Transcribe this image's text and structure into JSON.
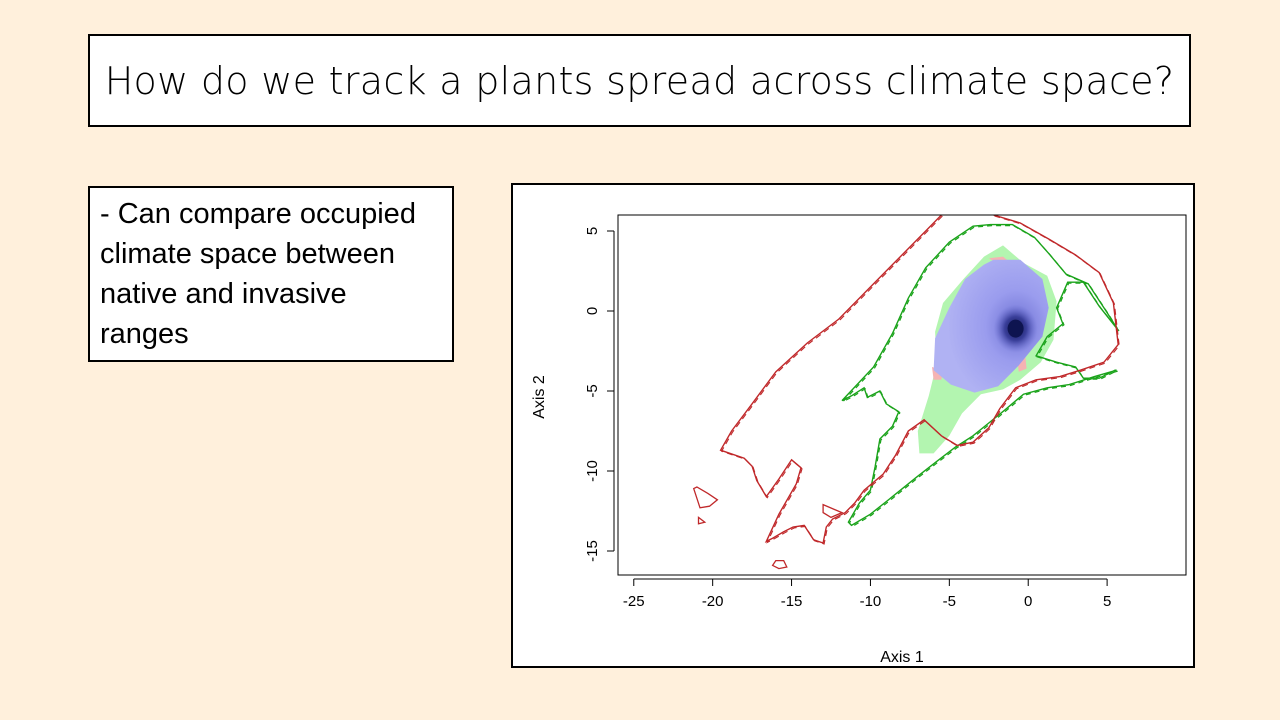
{
  "slide": {
    "title": "How do we track a plants spread across climate space?",
    "bullet": "- Can compare occupied climate space between native and invasive ranges"
  },
  "chart_data": {
    "type": "scatter",
    "xlabel": "Axis 1",
    "ylabel": "Axis 2",
    "xlim": [
      -26,
      10
    ],
    "ylim": [
      -16.5,
      6
    ],
    "x_ticks": [
      -25,
      -20,
      -15,
      -10,
      -5,
      0,
      5
    ],
    "y_ticks": [
      -15,
      -10,
      -5,
      0,
      5
    ],
    "x_tick_labels": [
      "-25",
      "-20",
      "-15",
      "-10",
      "-5",
      "0",
      "5"
    ],
    "y_tick_labels": [
      "-15",
      "-10",
      "-5",
      "0",
      "5"
    ],
    "colors": {
      "red_contour": "#c0282a",
      "green_contour": "#1aa31a",
      "blue_density": "#a7a8f0",
      "green_fill": "#b3f5b0",
      "pink_fill": "#f5b3b3",
      "density_peak": "#0e1450"
    },
    "red_contour": [
      [
        -5.5,
        6
      ],
      [
        -6.5,
        5
      ],
      [
        -8,
        3.5
      ],
      [
        -10,
        1.5
      ],
      [
        -12,
        -0.5
      ],
      [
        -14,
        -2
      ],
      [
        -16,
        -3.8
      ],
      [
        -17.5,
        -5.8
      ],
      [
        -18.8,
        -7.5
      ],
      [
        -19.5,
        -8.7
      ],
      [
        -18,
        -9.2
      ],
      [
        -17.5,
        -9.7
      ],
      [
        -17.2,
        -10.6
      ],
      [
        -16.6,
        -11.6
      ],
      [
        -15.8,
        -10.5
      ],
      [
        -15,
        -9.3
      ],
      [
        -14.4,
        -9.8
      ],
      [
        -14.7,
        -10.8
      ],
      [
        -15.8,
        -12.7
      ],
      [
        -16.6,
        -14.4
      ],
      [
        -16.2,
        -14.2
      ],
      [
        -15.5,
        -13.8
      ],
      [
        -14.9,
        -13.5
      ],
      [
        -14.2,
        -13.4
      ],
      [
        -13.6,
        -14.3
      ],
      [
        -13.0,
        -14.5
      ],
      [
        -12.8,
        -13.5
      ],
      [
        -12.4,
        -13.0
      ],
      [
        -11.6,
        -12.6
      ],
      [
        -11.0,
        -12.0
      ],
      [
        -10.4,
        -11.2
      ],
      [
        -9.2,
        -10.2
      ],
      [
        -8.4,
        -9.0
      ],
      [
        -7.6,
        -7.5
      ],
      [
        -6.6,
        -6.8
      ],
      [
        -5.5,
        -7.8
      ],
      [
        -4.5,
        -8.4
      ],
      [
        -3.5,
        -8.2
      ],
      [
        -2.5,
        -7.3
      ],
      [
        -1.8,
        -6.1
      ],
      [
        -0.8,
        -4.8
      ],
      [
        0.5,
        -4.3
      ],
      [
        2.0,
        -4.1
      ],
      [
        3.3,
        -3.7
      ],
      [
        4.8,
        -3.2
      ],
      [
        5.7,
        -2.1
      ],
      [
        5.4,
        0.5
      ],
      [
        4.5,
        2.4
      ],
      [
        3,
        3.5
      ],
      [
        1.3,
        4.5
      ],
      [
        -0.5,
        5.5
      ],
      [
        -2.2,
        6
      ]
    ],
    "red_contour_small": [
      [
        [
          -21.2,
          -11.1
        ],
        [
          -20.8,
          -12.3
        ],
        [
          -20.2,
          -12.2
        ],
        [
          -19.7,
          -11.8
        ],
        [
          -20.3,
          -11.4
        ],
        [
          -21.0,
          -11.0
        ],
        [
          -21.2,
          -11.1
        ]
      ],
      [
        [
          -20.9,
          -12.9
        ],
        [
          -20.5,
          -13.2
        ],
        [
          -20.9,
          -13.3
        ],
        [
          -20.9,
          -12.9
        ]
      ],
      [
        [
          -16.0,
          -15.6
        ],
        [
          -15.5,
          -15.6
        ],
        [
          -15.3,
          -16.0
        ],
        [
          -15.8,
          -16.1
        ],
        [
          -16.2,
          -15.9
        ],
        [
          -16.0,
          -15.6
        ]
      ],
      [
        [
          -13.0,
          -12.1
        ],
        [
          -12.3,
          -12.4
        ],
        [
          -11.8,
          -12.6
        ],
        [
          -12.5,
          -12.9
        ],
        [
          -13.0,
          -12.6
        ],
        [
          -13.0,
          -12.1
        ]
      ]
    ],
    "green_contour": [
      [
        -3.5,
        5.3
      ],
      [
        -5,
        4.3
      ],
      [
        -6.5,
        2.7
      ],
      [
        -7.6,
        0.8
      ],
      [
        -8.6,
        -1.4
      ],
      [
        -9.8,
        -3.5
      ],
      [
        -11.8,
        -5.6
      ],
      [
        -11.2,
        -5.3
      ],
      [
        -10.4,
        -4.8
      ],
      [
        -10.2,
        -5.4
      ],
      [
        -9.4,
        -5.0
      ],
      [
        -9.0,
        -5.8
      ],
      [
        -8.2,
        -6.3
      ],
      [
        -8.6,
        -7.2
      ],
      [
        -9.4,
        -8.0
      ],
      [
        -9.7,
        -9.7
      ],
      [
        -10.0,
        -11.2
      ],
      [
        -10.7,
        -12.0
      ],
      [
        -11.4,
        -13.2
      ],
      [
        -11.2,
        -13.4
      ],
      [
        -10.0,
        -12.7
      ],
      [
        -8.6,
        -11.6
      ],
      [
        -7.1,
        -10.4
      ],
      [
        -5.8,
        -9.4
      ],
      [
        -4.6,
        -8.5
      ],
      [
        -3.5,
        -7.8
      ],
      [
        -2.5,
        -7.0
      ],
      [
        -1.5,
        -6.2
      ],
      [
        -0.3,
        -5.2
      ],
      [
        1.2,
        -4.8
      ],
      [
        2.6,
        -4.6
      ],
      [
        4.2,
        -4.1
      ],
      [
        5.6,
        -3.7
      ],
      [
        5.5,
        -3.7
      ],
      [
        4.5,
        -4.2
      ],
      [
        3.5,
        -4.2
      ],
      [
        3.0,
        -3.5
      ],
      [
        1.8,
        -3.2
      ],
      [
        0.5,
        -2.8
      ],
      [
        1.2,
        -1.6
      ],
      [
        2.2,
        -0.8
      ],
      [
        1.8,
        0.2
      ],
      [
        2.5,
        1.8
      ],
      [
        3.5,
        1.8
      ],
      [
        4.5,
        0.3
      ],
      [
        5.7,
        -1.2
      ],
      [
        5.0,
        -0.1
      ],
      [
        3.8,
        1.7
      ],
      [
        2.4,
        2.3
      ],
      [
        1.3,
        3.6
      ],
      [
        0.4,
        4.6
      ],
      [
        -1.0,
        5.4
      ],
      [
        -2.4,
        5.4
      ],
      [
        -3.5,
        5.3
      ]
    ],
    "green_fill": [
      [
        -1.6,
        4.1
      ],
      [
        -0.3,
        3.0
      ],
      [
        1.2,
        2.2
      ],
      [
        1.8,
        0.6
      ],
      [
        1.6,
        -1.8
      ],
      [
        0.8,
        -3.2
      ],
      [
        -0.5,
        -4.3
      ],
      [
        -1.6,
        -4.9
      ],
      [
        -3.0,
        -5.2
      ],
      [
        -4.2,
        -6.4
      ],
      [
        -5.0,
        -7.8
      ],
      [
        -6.0,
        -8.9
      ],
      [
        -6.9,
        -8.9
      ],
      [
        -7.0,
        -7.5
      ],
      [
        -6.3,
        -5.3
      ],
      [
        -5.8,
        -3.3
      ],
      [
        -5.9,
        -1.3
      ],
      [
        -5.4,
        0.5
      ],
      [
        -4.1,
        2.0
      ],
      [
        -2.8,
        3.4
      ],
      [
        -1.6,
        4.1
      ]
    ],
    "blue_density": [
      [
        -2.2,
        3.2
      ],
      [
        -0.5,
        3.2
      ],
      [
        0.9,
        2.0
      ],
      [
        1.3,
        0.2
      ],
      [
        0.9,
        -1.6
      ],
      [
        -0.6,
        -3.4
      ],
      [
        -1.9,
        -4.7
      ],
      [
        -3.4,
        -5.1
      ],
      [
        -4.9,
        -4.6
      ],
      [
        -6.0,
        -3.7
      ],
      [
        -5.9,
        -1.7
      ],
      [
        -5.0,
        0.2
      ],
      [
        -4.0,
        2.0
      ],
      [
        -2.8,
        2.9
      ],
      [
        -2.2,
        3.2
      ]
    ],
    "pink_fill": [
      [
        [
          -2.5,
          3.3
        ],
        [
          -1.6,
          3.4
        ],
        [
          -1.1,
          3.0
        ],
        [
          -1.8,
          2.9
        ],
        [
          -2.5,
          3.3
        ]
      ],
      [
        [
          -6.1,
          -3.5
        ],
        [
          -5.4,
          -3.7
        ],
        [
          -5.5,
          -4.3
        ],
        [
          -6.0,
          -4.3
        ],
        [
          -6.1,
          -3.5
        ]
      ],
      [
        [
          -0.7,
          -3.0
        ],
        [
          -0.2,
          -2.7
        ],
        [
          -0.1,
          -3.6
        ],
        [
          -0.6,
          -3.8
        ],
        [
          -0.7,
          -3.0
        ]
      ]
    ],
    "density_peak": [
      -0.8,
      -1.1
    ]
  }
}
